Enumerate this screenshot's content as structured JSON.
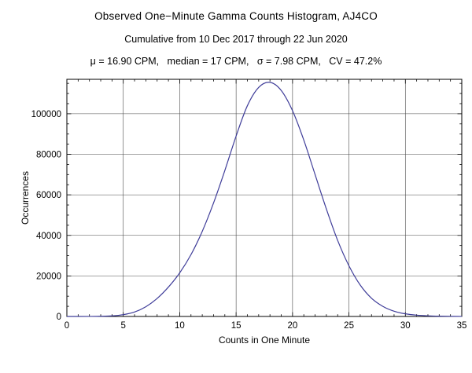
{
  "chart_data": {
    "type": "line",
    "title": "Observed One−Minute Gamma Counts Histogram, AJ4CO",
    "subtitle": "Cumulative from 10 Dec 2017 through 22 Jun 2020",
    "stats_line": "μ = 16.90 CPM,   median = 17 CPM,   σ = 7.98 CPM,   CV = 47.2%",
    "xlabel": "Counts in One Minute",
    "ylabel": "Occurrences",
    "xlim": [
      0,
      35
    ],
    "ylim": [
      0,
      117000
    ],
    "x_ticks": [
      0,
      5,
      10,
      15,
      20,
      25,
      30,
      35
    ],
    "y_ticks": [
      0,
      20000,
      40000,
      60000,
      80000,
      100000
    ],
    "x_minor_step": 1,
    "y_minor_step": 5000,
    "grid": true,
    "grid_color": "#4a4a4a",
    "frame_color": "#000000",
    "line_color": "#3f3d99",
    "legend_position": "none",
    "series": [
      {
        "name": "occurrences",
        "x": [
          0,
          1,
          2,
          3,
          4,
          5,
          6,
          7,
          8,
          9,
          10,
          11,
          12,
          13,
          14,
          15,
          16,
          17,
          18,
          19,
          20,
          21,
          22,
          23,
          24,
          25,
          26,
          27,
          28,
          29,
          30,
          31,
          32,
          33,
          34,
          35
        ],
        "y": [
          0,
          0,
          20,
          90,
          300,
          900,
          2200,
          4800,
          8900,
          14500,
          21500,
          30500,
          42000,
          56000,
          72000,
          89000,
          104000,
          113000,
          115500,
          111500,
          101500,
          87000,
          70000,
          53000,
          37500,
          25000,
          15500,
          9000,
          5000,
          2600,
          1300,
          650,
          320,
          150,
          70,
          30
        ]
      }
    ]
  }
}
